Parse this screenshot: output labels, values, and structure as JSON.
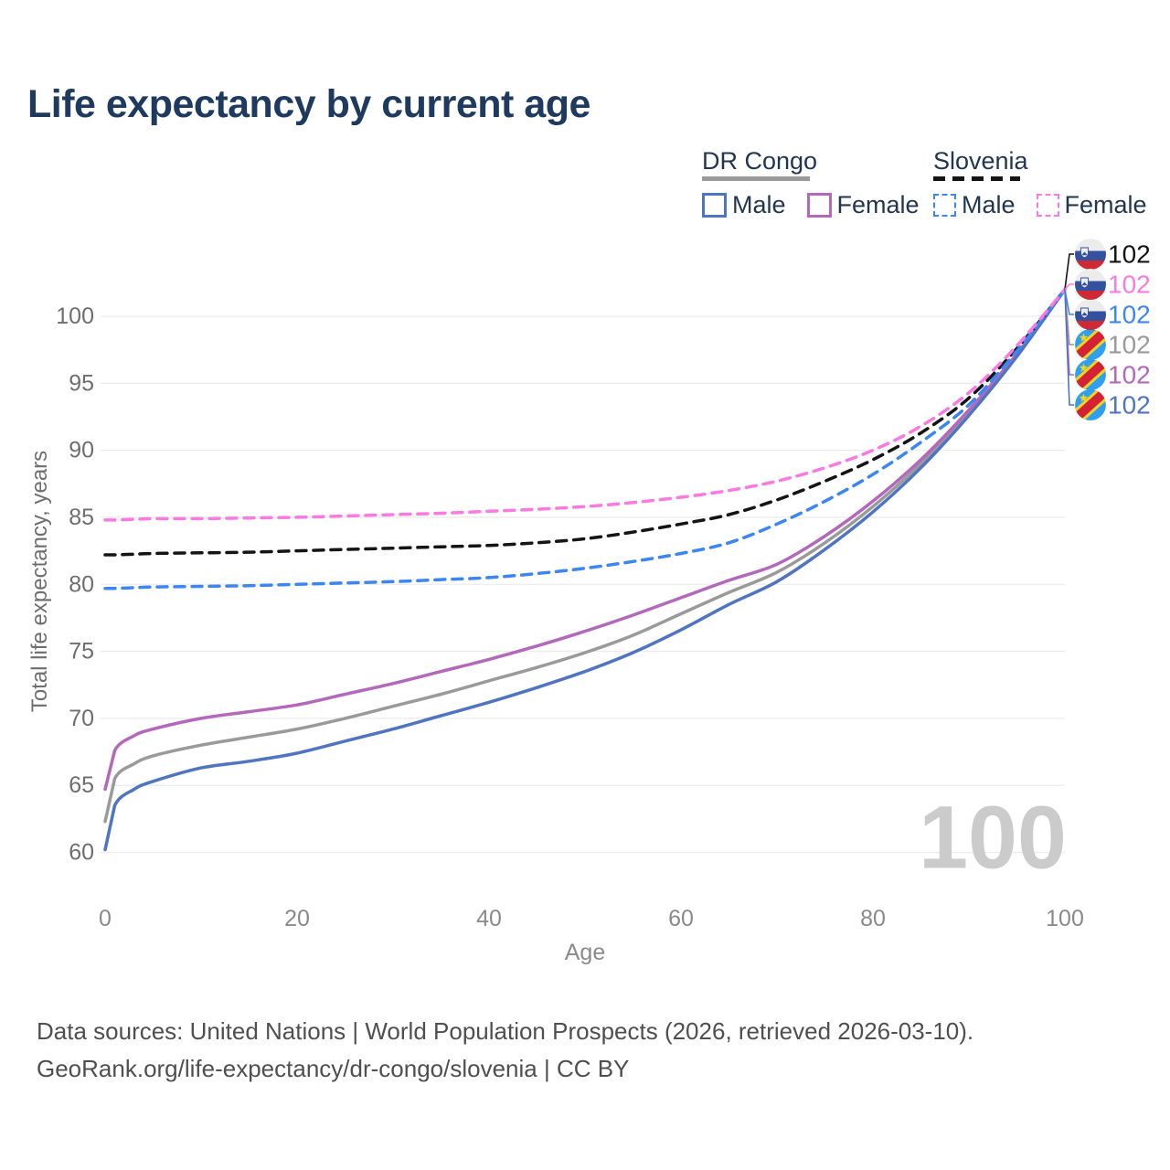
{
  "title": "Life expectancy by current age",
  "legend": {
    "groups": [
      {
        "name": "DR Congo",
        "line_style": "solid",
        "underline_color": "#9a9a9a",
        "items": [
          {
            "label": "Male",
            "color": "#4f74c2"
          },
          {
            "label": "Female",
            "color": "#b468bb"
          }
        ]
      },
      {
        "name": "Slovenia",
        "line_style": "dashed",
        "underline_color": "#141414",
        "items": [
          {
            "label": "Male",
            "color": "#3c86f4"
          },
          {
            "label": "Female",
            "color": "#fb7ae2"
          }
        ]
      }
    ]
  },
  "chart_data": {
    "type": "line",
    "title": "Life expectancy by current age",
    "xlabel": "Age",
    "ylabel": "Total life expectancy, years",
    "xlim": [
      0,
      100
    ],
    "ylim": [
      58,
      103.5
    ],
    "xticks": [
      0,
      20,
      40,
      60,
      80,
      100
    ],
    "yticks": [
      60,
      65,
      70,
      75,
      80,
      85,
      90,
      95,
      100
    ],
    "grid": "horizontal",
    "legend_position": "top-right",
    "watermark_age": "100",
    "x": [
      0,
      1,
      3,
      5,
      10,
      15,
      20,
      25,
      30,
      35,
      40,
      45,
      50,
      55,
      60,
      65,
      70,
      75,
      80,
      85,
      90,
      95,
      100
    ],
    "series": [
      {
        "id": "drc-both",
        "name": "DR Congo Both sexes",
        "country": "DR Congo",
        "sex": "Both",
        "color": "#9a9a9a",
        "dash": "solid",
        "flag": "dr-congo",
        "end_label": "102",
        "label_row": 3,
        "values": [
          62.3,
          65.5,
          66.6,
          67.2,
          68.0,
          68.6,
          69.2,
          70.0,
          70.9,
          71.8,
          72.8,
          73.8,
          74.9,
          76.2,
          77.8,
          79.4,
          80.9,
          83.1,
          85.8,
          89.0,
          92.8,
          97.1,
          102
        ]
      },
      {
        "id": "drc-female",
        "name": "DR Congo Female",
        "country": "DR Congo",
        "sex": "Female",
        "color": "#b468bb",
        "dash": "solid",
        "flag": "dr-congo",
        "end_label": "102",
        "label_row": 4,
        "values": [
          64.7,
          67.6,
          68.7,
          69.2,
          70.0,
          70.5,
          71.0,
          71.8,
          72.6,
          73.5,
          74.4,
          75.4,
          76.5,
          77.7,
          79.0,
          80.3,
          81.5,
          83.6,
          86.2,
          89.3,
          93.0,
          97.2,
          102
        ]
      },
      {
        "id": "drc-male",
        "name": "DR Congo Male",
        "country": "DR Congo",
        "sex": "Male",
        "color": "#4f74c2",
        "dash": "solid",
        "flag": "dr-congo",
        "end_label": "102",
        "label_row": 5,
        "values": [
          60.2,
          63.5,
          64.7,
          65.3,
          66.3,
          66.8,
          67.4,
          68.3,
          69.2,
          70.2,
          71.2,
          72.3,
          73.5,
          74.9,
          76.6,
          78.5,
          80.2,
          82.6,
          85.4,
          88.7,
          92.6,
          97.0,
          102
        ]
      },
      {
        "id": "si-both",
        "name": "Slovenia Both sexes",
        "country": "Slovenia",
        "sex": "Both",
        "color": "#141414",
        "dash": "dashed",
        "flag": "slovenia",
        "end_label": "102",
        "label_row": 0,
        "values": [
          82.2,
          82.2,
          82.25,
          82.3,
          82.35,
          82.4,
          82.5,
          82.6,
          82.7,
          82.8,
          82.9,
          83.1,
          83.4,
          83.9,
          84.5,
          85.2,
          86.3,
          87.7,
          89.3,
          91.3,
          93.9,
          97.6,
          102
        ]
      },
      {
        "id": "si-male",
        "name": "Slovenia Male",
        "country": "Slovenia",
        "sex": "Male",
        "color": "#3c86f4",
        "dash": "dashed",
        "flag": "slovenia",
        "end_label": "102",
        "label_row": 2,
        "values": [
          79.7,
          79.7,
          79.75,
          79.8,
          79.85,
          79.9,
          80.0,
          80.1,
          80.2,
          80.35,
          80.5,
          80.8,
          81.2,
          81.7,
          82.3,
          83.1,
          84.5,
          86.2,
          88.2,
          90.6,
          93.4,
          97.4,
          102
        ]
      },
      {
        "id": "si-female",
        "name": "Slovenia Female",
        "country": "Slovenia",
        "sex": "Female",
        "color": "#fb7ae2",
        "dash": "dashed",
        "flag": "slovenia",
        "end_label": "102",
        "label_row": 1,
        "values": [
          84.8,
          84.8,
          84.85,
          84.9,
          84.9,
          84.95,
          85.0,
          85.1,
          85.2,
          85.3,
          85.45,
          85.6,
          85.8,
          86.1,
          86.5,
          87.0,
          87.7,
          88.7,
          90.0,
          91.8,
          94.3,
          97.8,
          102
        ]
      }
    ]
  },
  "footer": {
    "line1": "Data sources: United Nations | World Population Prospects (2026, retrieved 2026-03-10).",
    "line2": "GeoRank.org/life-expectancy/dr-congo/slovenia | CC BY"
  }
}
